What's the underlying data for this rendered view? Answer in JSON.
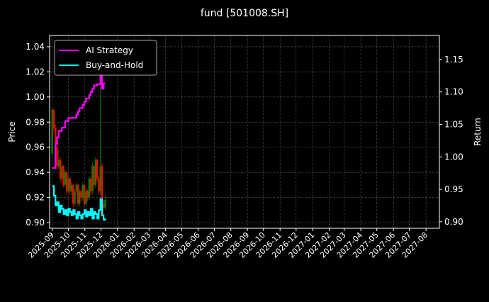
{
  "chart_data": {
    "type": "line",
    "title": "fund [501008.SH]",
    "ylabel": "Price",
    "ylabel_right": "Return",
    "grid": true,
    "legend_position": "top-left",
    "background": "#000000",
    "xlim": [
      "2025-08-27",
      "2027-08-26"
    ],
    "ylim": [
      0.8955,
      1.049
    ],
    "ylim_right": [
      0.89,
      1.187
    ],
    "x_ticks": [
      "2025-09",
      "2025-10",
      "2025-11",
      "2025-12",
      "2026-01",
      "2026-02",
      "2026-03",
      "2026-04",
      "2026-05",
      "2026-06",
      "2026-07",
      "2026-08",
      "2026-09",
      "2026-10",
      "2026-11",
      "2026-12",
      "2027-01",
      "2027-02",
      "2027-03",
      "2027-04",
      "2027-05",
      "2027-06",
      "2027-07",
      "2027-08"
    ],
    "y_ticks": [
      "0.90",
      "0.92",
      "0.94",
      "0.96",
      "0.98",
      "1.00",
      "1.02",
      "1.04"
    ],
    "y_ticks_right": [
      "0.90",
      "0.95",
      "1.00",
      "1.05",
      "1.10",
      "1.15"
    ],
    "dates": [
      "2025-09-01",
      "2025-09-04",
      "2025-09-07",
      "2025-09-10",
      "2025-09-13",
      "2025-09-16",
      "2025-09-19",
      "2025-09-22",
      "2025-09-25",
      "2025-09-28",
      "2025-10-01",
      "2025-10-04",
      "2025-10-07",
      "2025-10-10",
      "2025-10-13",
      "2025-10-16",
      "2025-10-19",
      "2025-10-22",
      "2025-10-25",
      "2025-10-28",
      "2025-10-31",
      "2025-11-03",
      "2025-11-06",
      "2025-11-09",
      "2025-11-12",
      "2025-11-15",
      "2025-11-18",
      "2025-11-21",
      "2025-11-24",
      "2025-11-27",
      "2025-11-30",
      "2025-12-03",
      "2025-12-06",
      "2025-12-09"
    ],
    "candles": {
      "up_color": "#008000",
      "down_color": "#ff0000",
      "open": [
        0.955,
        0.99,
        0.975,
        0.96,
        0.945,
        0.95,
        0.935,
        0.945,
        0.93,
        0.94,
        0.925,
        0.935,
        0.925,
        0.93,
        0.915,
        0.925,
        0.93,
        0.915,
        0.925,
        0.92,
        0.93,
        0.915,
        0.925,
        0.92,
        0.935,
        0.925,
        0.945,
        0.93,
        0.95,
        0.935,
        0.925,
        0.945,
        0.915,
        0.912
      ],
      "close": [
        0.99,
        0.975,
        0.96,
        0.945,
        0.95,
        0.935,
        0.945,
        0.93,
        0.94,
        0.925,
        0.935,
        0.925,
        0.93,
        0.915,
        0.925,
        0.93,
        0.915,
        0.925,
        0.92,
        0.93,
        0.915,
        0.925,
        0.92,
        0.935,
        0.925,
        0.945,
        0.93,
        0.95,
        0.935,
        0.925,
        0.945,
        0.915,
        0.912,
        0.918
      ],
      "high": [
        0.992,
        0.99,
        0.978,
        0.962,
        0.958,
        0.952,
        0.948,
        0.946,
        0.942,
        0.941,
        0.937,
        0.936,
        0.932,
        0.931,
        0.927,
        0.932,
        0.931,
        0.927,
        0.926,
        0.932,
        0.931,
        0.927,
        0.926,
        0.937,
        0.936,
        0.948,
        0.946,
        0.952,
        0.951,
        0.937,
        1.01,
        0.947,
        0.918,
        0.922
      ],
      "low": [
        0.952,
        0.972,
        0.957,
        0.942,
        0.943,
        0.932,
        0.933,
        0.928,
        0.928,
        0.922,
        0.923,
        0.922,
        0.922,
        0.912,
        0.913,
        0.922,
        0.913,
        0.913,
        0.917,
        0.918,
        0.913,
        0.913,
        0.917,
        0.918,
        0.922,
        0.923,
        0.927,
        0.928,
        0.932,
        0.922,
        0.922,
        0.905,
        0.902,
        0.91
      ]
    },
    "series": [
      {
        "name": "AI Strategy",
        "color": "#ff00ff",
        "axis": "right",
        "values": [
          0.983,
          0.983,
          1.02,
          1.03,
          1.04,
          1.04,
          1.045,
          1.045,
          1.055,
          1.055,
          1.06,
          1.06,
          1.06,
          1.06,
          1.06,
          1.065,
          1.07,
          1.075,
          1.075,
          1.08,
          1.085,
          1.09,
          1.09,
          1.095,
          1.1,
          1.105,
          1.11,
          1.11,
          1.112,
          1.112,
          1.125,
          1.105,
          1.113,
          1.113
        ]
      },
      {
        "name": "Buy-and-Hold",
        "color": "#00ffff",
        "axis": "right",
        "values": [
          0.955,
          0.94,
          0.925,
          0.93,
          0.915,
          0.925,
          0.92,
          0.912,
          0.918,
          0.91,
          0.92,
          0.915,
          0.91,
          0.918,
          0.912,
          0.905,
          0.915,
          0.91,
          0.905,
          0.912,
          0.918,
          0.908,
          0.915,
          0.91,
          0.92,
          0.905,
          0.915,
          0.912,
          0.905,
          0.918,
          0.935,
          0.91,
          0.903,
          0.905
        ]
      }
    ]
  }
}
